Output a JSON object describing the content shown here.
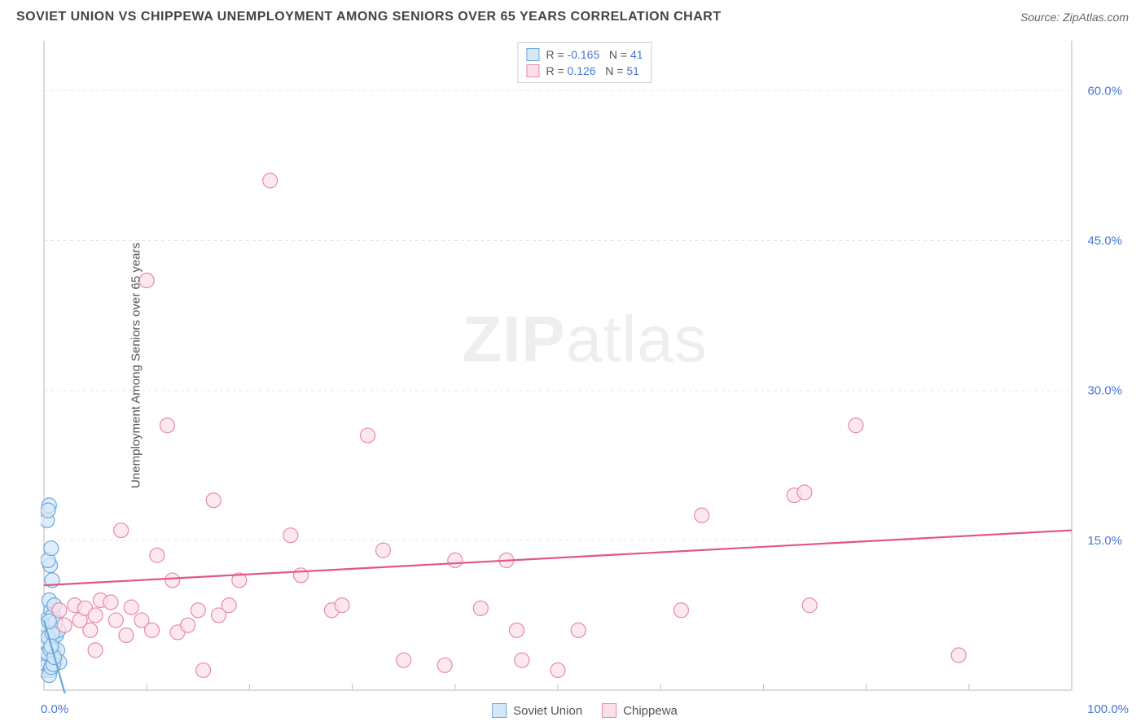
{
  "title": "SOVIET UNION VS CHIPPEWA UNEMPLOYMENT AMONG SENIORS OVER 65 YEARS CORRELATION CHART",
  "source": "Source: ZipAtlas.com",
  "watermark": "ZIPatlas",
  "ylabel": "Unemployment Among Seniors over 65 years",
  "chart": {
    "type": "scatter",
    "xlim": [
      0,
      100
    ],
    "ylim": [
      0,
      65
    ],
    "x_tick_step": 10,
    "x_tick_labels_shown": {
      "0": "0.0%",
      "100": "100.0%"
    },
    "y_ticks": [
      15.0,
      30.0,
      45.0,
      60.0
    ],
    "y_tick_labels": [
      "15.0%",
      "30.0%",
      "45.0%",
      "60.0%"
    ],
    "background_color": "#ffffff",
    "grid_color": "#e7e7e7",
    "axis_line_color": "#cfcfcf",
    "tick_color": "#bfbfbf",
    "axis_label_color": "#4876d6",
    "marker_radius": 9,
    "marker_stroke_width": 1.2,
    "series": [
      {
        "name": "Soviet Union",
        "fill": "#d6e7f7",
        "stroke": "#6aa8de",
        "line_color": "#6aa8de",
        "R": "-0.165",
        "N": "41",
        "trend": {
          "x1": 0,
          "y1": 7.0,
          "x2": 2.5,
          "y2": -2.0
        },
        "points": [
          [
            0.0,
            2.0
          ],
          [
            0.2,
            3.0
          ],
          [
            0.3,
            4.5
          ],
          [
            0.5,
            3.5
          ],
          [
            0.6,
            5.0
          ],
          [
            0.8,
            6.0
          ],
          [
            0.4,
            7.2
          ],
          [
            0.7,
            8.0
          ],
          [
            0.3,
            2.5
          ],
          [
            0.9,
            4.0
          ],
          [
            1.0,
            5.5
          ],
          [
            0.2,
            6.5
          ],
          [
            0.5,
            9.0
          ],
          [
            0.6,
            12.5
          ],
          [
            0.4,
            13.0
          ],
          [
            0.8,
            11.0
          ],
          [
            0.7,
            14.2
          ],
          [
            0.3,
            17.0
          ],
          [
            0.5,
            18.5
          ],
          [
            0.4,
            18.0
          ],
          [
            1.1,
            3.0
          ],
          [
            1.2,
            5.5
          ],
          [
            1.3,
            4.0
          ],
          [
            1.5,
            2.8
          ],
          [
            1.4,
            6.0
          ],
          [
            0.9,
            7.5
          ],
          [
            1.0,
            8.5
          ],
          [
            0.6,
            2.0
          ],
          [
            0.8,
            3.2
          ],
          [
            0.2,
            4.8
          ],
          [
            0.5,
            1.5
          ],
          [
            0.7,
            2.3
          ],
          [
            0.3,
            3.7
          ],
          [
            0.9,
            2.6
          ],
          [
            1.1,
            6.8
          ],
          [
            0.4,
            5.3
          ],
          [
            0.6,
            4.1
          ],
          [
            0.8,
            5.7
          ],
          [
            1.0,
            3.3
          ],
          [
            0.5,
            6.9
          ],
          [
            0.7,
            4.4
          ]
        ]
      },
      {
        "name": "Chippewa",
        "fill": "#fbe0e8",
        "stroke": "#e88aa8",
        "line_color": "#e35583",
        "R": "0.126",
        "N": "51",
        "trend": {
          "x1": 0,
          "y1": 10.5,
          "x2": 100,
          "y2": 16.0
        },
        "points": [
          [
            1.5,
            8.0
          ],
          [
            2.0,
            6.5
          ],
          [
            3.0,
            8.5
          ],
          [
            3.5,
            7.0
          ],
          [
            4.0,
            8.2
          ],
          [
            4.5,
            6.0
          ],
          [
            5.0,
            7.5
          ],
          [
            5.5,
            9.0
          ],
          [
            6.5,
            8.8
          ],
          [
            7.0,
            7.0
          ],
          [
            7.5,
            16.0
          ],
          [
            8.0,
            5.5
          ],
          [
            8.5,
            8.3
          ],
          [
            9.5,
            7.0
          ],
          [
            10.0,
            41.0
          ],
          [
            11.0,
            13.5
          ],
          [
            12.0,
            26.5
          ],
          [
            12.5,
            11.0
          ],
          [
            13.0,
            5.8
          ],
          [
            14.0,
            6.5
          ],
          [
            15.0,
            8.0
          ],
          [
            15.5,
            2.0
          ],
          [
            16.5,
            19.0
          ],
          [
            17.0,
            7.5
          ],
          [
            18.0,
            8.5
          ],
          [
            19.0,
            11.0
          ],
          [
            22.0,
            51.0
          ],
          [
            24.0,
            15.5
          ],
          [
            25.0,
            11.5
          ],
          [
            28.0,
            8.0
          ],
          [
            29.0,
            8.5
          ],
          [
            31.5,
            25.5
          ],
          [
            33.0,
            14.0
          ],
          [
            35.0,
            3.0
          ],
          [
            39.0,
            2.5
          ],
          [
            40.0,
            13.0
          ],
          [
            42.5,
            8.2
          ],
          [
            45.0,
            13.0
          ],
          [
            46.0,
            6.0
          ],
          [
            46.5,
            3.0
          ],
          [
            50.0,
            2.0
          ],
          [
            52.0,
            6.0
          ],
          [
            62.0,
            8.0
          ],
          [
            64.0,
            17.5
          ],
          [
            73.0,
            19.5
          ],
          [
            74.0,
            19.8
          ],
          [
            74.5,
            8.5
          ],
          [
            79.0,
            26.5
          ],
          [
            89.0,
            3.5
          ],
          [
            5.0,
            4.0
          ],
          [
            10.5,
            6.0
          ]
        ]
      }
    ]
  },
  "legend_bottom": [
    {
      "label": "Soviet Union",
      "fill": "#d6e7f7",
      "stroke": "#6aa8de"
    },
    {
      "label": "Chippewa",
      "fill": "#fbe0e8",
      "stroke": "#e88aa8"
    }
  ]
}
